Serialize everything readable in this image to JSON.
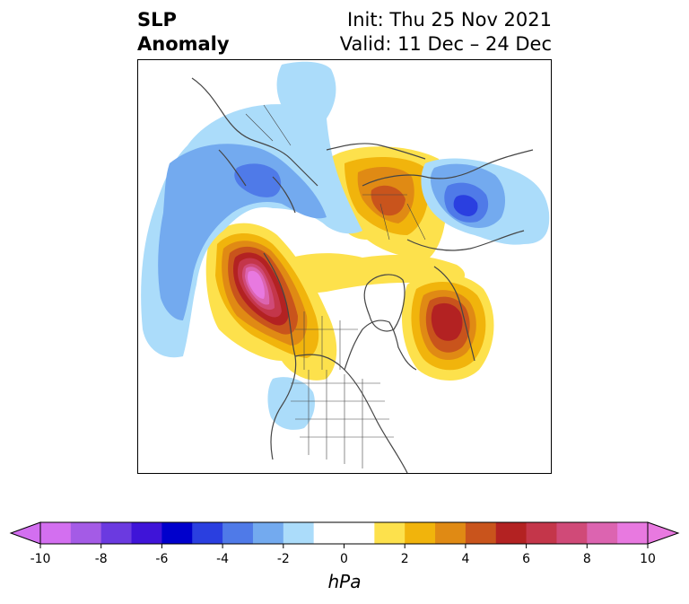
{
  "title": {
    "left_line1": "SLP",
    "left_line2": "Anomaly",
    "right_line1": "Init: Thu 25 Nov 2021",
    "right_line2": "Valid: 11 Dec – 24 Dec"
  },
  "colorbar": {
    "ticks": [
      "-10",
      "-8",
      "-6",
      "-4",
      "-2",
      "0",
      "2",
      "4",
      "6",
      "8",
      "10"
    ],
    "unit": "hPa",
    "min_color": "#d36ff0",
    "max_color": "#e879e0",
    "colors": [
      "#d36ff0",
      "#a45be6",
      "#6b3ae0",
      "#3f14d8",
      "#0000cc",
      "#2a3fe0",
      "#4f7ae8",
      "#73aaef",
      "#abdcfa",
      "#ffffff",
      "#ffffff",
      "#fde14c",
      "#f1b40c",
      "#e08a14",
      "#c9541c",
      "#b32222",
      "#c4364a",
      "#d04a78",
      "#dc64b0",
      "#e879e0"
    ]
  },
  "palette": {
    "coast": "#454545",
    "light_blue": "#abdcfa",
    "mid_blue": "#73aaef",
    "blue": "#4f7ae8",
    "dark_blue": "#2a3fe0",
    "yellow": "#fde14c",
    "gold": "#f1b40c",
    "orange": "#e08a14",
    "dark_orange": "#c9541c",
    "red": "#b32222",
    "crimson": "#c4364a",
    "rose": "#d04a78",
    "pink": "#dc64b0",
    "magenta": "#e879e0"
  }
}
